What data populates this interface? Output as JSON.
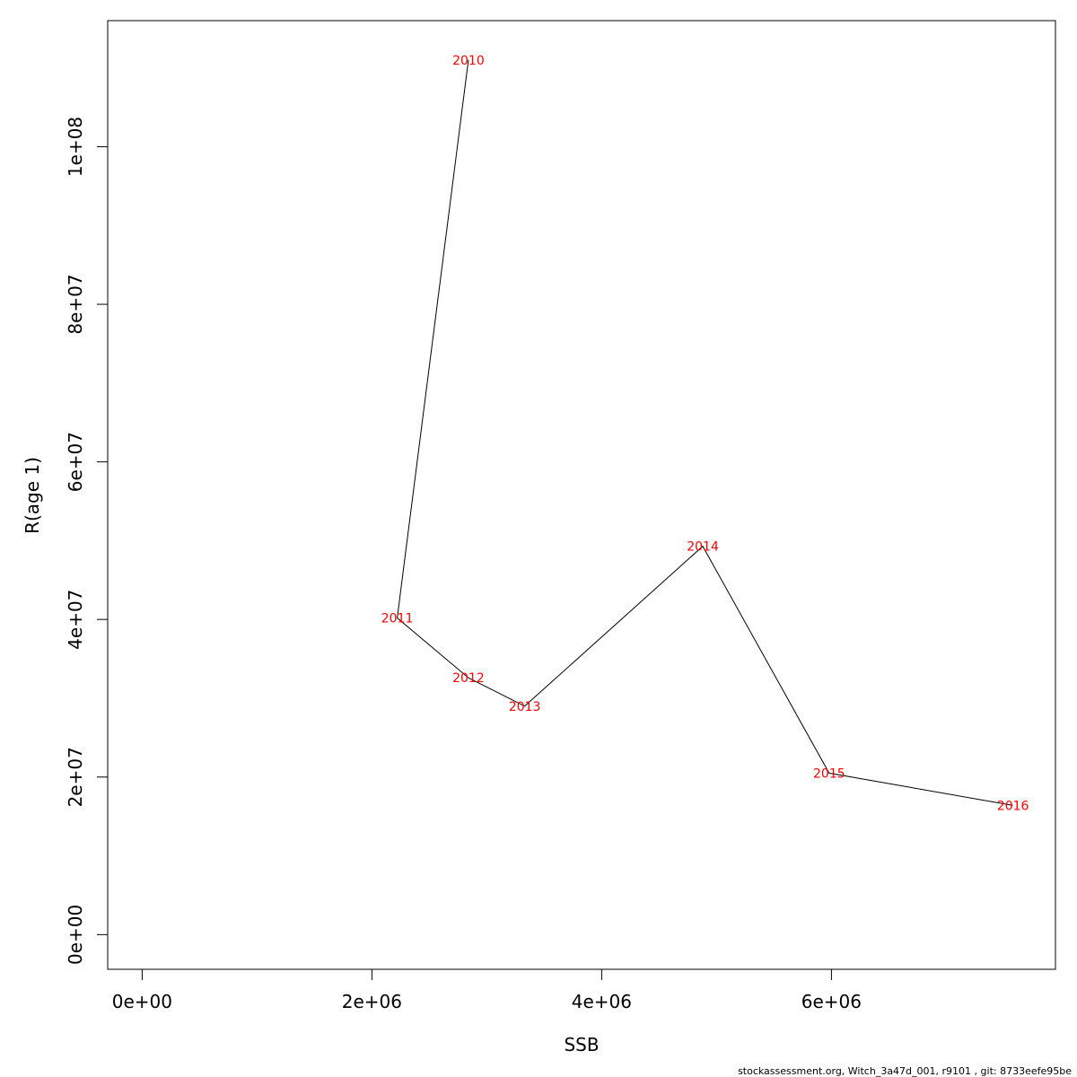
{
  "chart_data": {
    "type": "line",
    "xlabel": "SSB",
    "ylabel": "R(age 1)",
    "xlim": [
      -300000,
      7950000
    ],
    "ylim": [
      -4400000,
      116000000
    ],
    "x_ticks": [
      {
        "value": 0,
        "label": "0e+00"
      },
      {
        "value": 2000000,
        "label": "2e+06"
      },
      {
        "value": 4000000,
        "label": "4e+06"
      },
      {
        "value": 6000000,
        "label": "6e+06"
      }
    ],
    "y_ticks": [
      {
        "value": 0,
        "label": "0e+00"
      },
      {
        "value": 20000000,
        "label": "2e+07"
      },
      {
        "value": 40000000,
        "label": "4e+07"
      },
      {
        "value": 60000000,
        "label": "6e+07"
      },
      {
        "value": 80000000,
        "label": "8e+07"
      },
      {
        "value": 100000000,
        "label": "1e+08"
      }
    ],
    "points": [
      {
        "label": "2010",
        "x": 2840000,
        "y": 111000000
      },
      {
        "label": "2011",
        "x": 2220000,
        "y": 40200000
      },
      {
        "label": "2012",
        "x": 2840000,
        "y": 32600000
      },
      {
        "label": "2013",
        "x": 3330000,
        "y": 29000000
      },
      {
        "label": "2014",
        "x": 4880000,
        "y": 49300000
      },
      {
        "label": "2015",
        "x": 5980000,
        "y": 20500000
      },
      {
        "label": "2016",
        "x": 7580000,
        "y": 16400000
      }
    ],
    "line_color": "#000000",
    "label_color": "#ff0000",
    "grid": false
  },
  "footer": "stockassessment.org, Witch_3a47d_001, r9101 , git: 8733eefe95be"
}
